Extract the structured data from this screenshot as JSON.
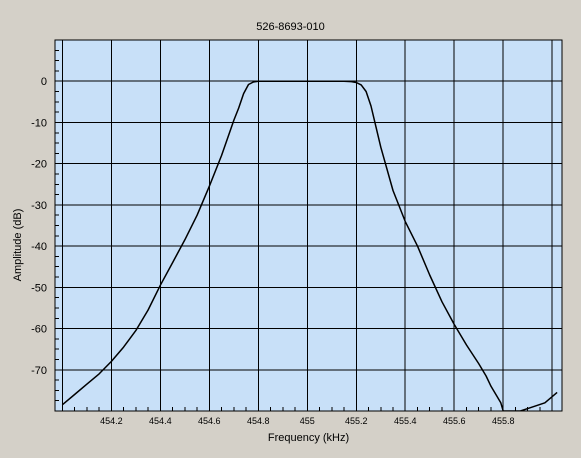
{
  "chart_data": {
    "type": "line",
    "title": "526-8693-010",
    "xlabel": "Frequency (kHz)",
    "ylabel": "Amplitude (dB)",
    "xlim": [
      453.97,
      456.04
    ],
    "ylim": [
      -80,
      10
    ],
    "xticks": [
      454.2,
      454.4,
      454.6,
      454.8,
      455,
      455.2,
      455.4,
      455.6,
      455.8
    ],
    "xtick_labels": [
      "454.2",
      "454.4",
      "454.6",
      "454.8",
      "455",
      "455.2",
      "455.4",
      "455.6",
      "455.8"
    ],
    "yticks": [
      0,
      -10,
      -20,
      -30,
      -40,
      -50,
      -60,
      -70
    ],
    "ytick_labels": [
      "0",
      "-10",
      "-20",
      "-30",
      "-40",
      "-50",
      "-60",
      "-70"
    ],
    "grid": true,
    "background_color": "#c8e0f8",
    "line_color": "#000000",
    "series": [
      {
        "x": [
          454.0,
          454.05,
          454.1,
          454.15,
          454.2,
          454.25,
          454.3,
          454.35,
          454.4,
          454.45,
          454.5,
          454.55,
          454.6,
          454.65,
          454.7,
          454.72,
          454.74,
          454.76,
          454.78,
          454.8,
          454.85,
          454.9,
          455.0,
          455.1,
          455.15,
          455.18,
          455.2,
          455.22,
          455.24,
          455.26,
          455.3,
          455.35,
          455.4,
          455.45,
          455.5,
          455.55,
          455.6,
          455.65,
          455.7,
          455.73,
          455.75,
          455.77,
          455.79,
          455.8,
          455.82,
          455.87,
          455.92,
          455.97,
          456.02
        ],
        "y": [
          -78.5,
          -76,
          -73.5,
          -71,
          -68,
          -64.5,
          -60.5,
          -55.5,
          -49.5,
          -44,
          -38.5,
          -32.5,
          -25.5,
          -18,
          -9.5,
          -6.5,
          -3,
          -0.8,
          -0.2,
          0,
          0,
          0,
          0,
          0,
          0,
          -0.1,
          -0.3,
          -0.9,
          -2.5,
          -6,
          -16,
          -26.5,
          -34,
          -40,
          -47,
          -53.5,
          -59,
          -64,
          -68.5,
          -71.5,
          -74,
          -76,
          -78,
          -80,
          -80,
          -80,
          -79,
          -78,
          -75.5
        ]
      }
    ]
  }
}
